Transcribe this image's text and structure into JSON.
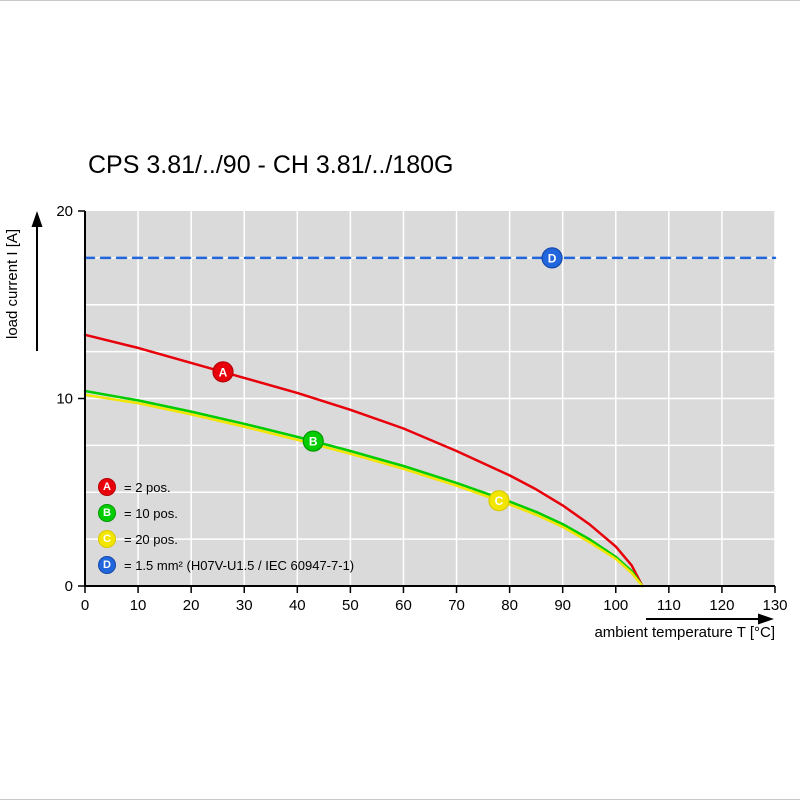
{
  "chart_data": {
    "type": "line",
    "title": "CPS 3.81/../90 - CH 3.81/../180G",
    "xlabel": "ambient temperature T [°C]",
    "ylabel": "load current I [A]",
    "xlim": [
      0,
      130
    ],
    "ylim": [
      0,
      20
    ],
    "x_ticks": [
      0,
      10,
      20,
      30,
      40,
      50,
      60,
      70,
      80,
      90,
      100,
      110,
      120,
      130
    ],
    "y_ticks": [
      0,
      10,
      20
    ],
    "y_gridlines": [
      2.5,
      5,
      7.5,
      10,
      12.5,
      15,
      17.5
    ],
    "grid": true,
    "plot_background": "#dadada",
    "grid_color": "#ffffff",
    "series": [
      {
        "name": "A",
        "legend_label": "= 2 pos.",
        "color": "#e8000a",
        "marker_border": "#b50008",
        "dash": "none",
        "marker_x": 26,
        "points": [
          [
            0,
            13.4
          ],
          [
            10,
            12.7
          ],
          [
            20,
            11.9
          ],
          [
            30,
            11.1
          ],
          [
            40,
            10.3
          ],
          [
            50,
            9.4
          ],
          [
            60,
            8.4
          ],
          [
            70,
            7.2
          ],
          [
            80,
            5.9
          ],
          [
            85,
            5.15
          ],
          [
            90,
            4.3
          ],
          [
            95,
            3.3
          ],
          [
            100,
            2.1
          ],
          [
            103,
            1.1
          ],
          [
            105,
            0
          ]
        ]
      },
      {
        "name": "B",
        "legend_label": "= 10 pos.",
        "color": "#00cc00",
        "marker_border": "#009900",
        "dash": "none",
        "marker_x": 43,
        "points": [
          [
            0,
            10.4
          ],
          [
            10,
            9.9
          ],
          [
            20,
            9.3
          ],
          [
            30,
            8.65
          ],
          [
            40,
            7.95
          ],
          [
            50,
            7.2
          ],
          [
            60,
            6.4
          ],
          [
            70,
            5.5
          ],
          [
            80,
            4.5
          ],
          [
            85,
            3.95
          ],
          [
            90,
            3.3
          ],
          [
            95,
            2.5
          ],
          [
            100,
            1.55
          ],
          [
            103,
            0.8
          ],
          [
            105,
            0
          ]
        ]
      },
      {
        "name": "C",
        "legend_label": "= 20 pos.",
        "color": "#f2e500",
        "marker_border": "#d8c800",
        "dash": "none",
        "marker_x": 78,
        "points": [
          [
            0,
            10.2
          ],
          [
            10,
            9.75
          ],
          [
            20,
            9.15
          ],
          [
            30,
            8.5
          ],
          [
            40,
            7.8
          ],
          [
            50,
            7.05
          ],
          [
            60,
            6.25
          ],
          [
            70,
            5.35
          ],
          [
            80,
            4.35
          ],
          [
            85,
            3.8
          ],
          [
            90,
            3.15
          ],
          [
            95,
            2.35
          ],
          [
            100,
            1.45
          ],
          [
            103,
            0.7
          ],
          [
            105,
            0
          ]
        ]
      },
      {
        "name": "D",
        "legend_label": "= 1.5 mm² (H07V-U1.5 / IEC 60947-7-1)",
        "color": "#2266dd",
        "marker_border": "#1448aa",
        "dash": "9 7",
        "marker_x": 88,
        "points": [
          [
            0,
            17.5
          ],
          [
            130,
            17.5
          ]
        ]
      }
    ]
  }
}
